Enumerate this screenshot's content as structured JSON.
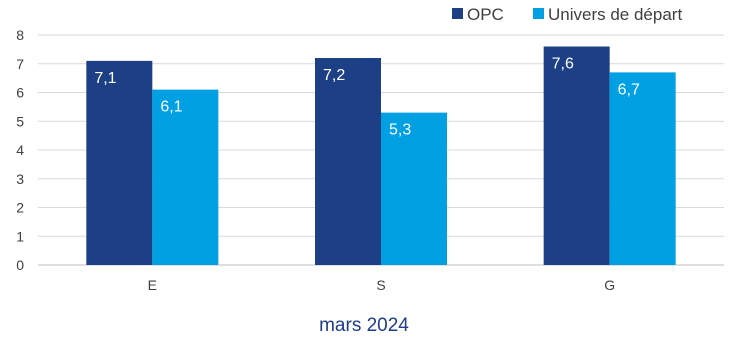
{
  "chart_data": {
    "type": "bar",
    "categories": [
      "E",
      "S",
      "G"
    ],
    "series": [
      {
        "name": "OPC",
        "values": [
          7.1,
          7.2,
          7.6
        ],
        "color": "#1c3f86"
      },
      {
        "name": "Univers de départ",
        "values": [
          6.1,
          5.3,
          6.7
        ],
        "color": "#00a0e3"
      }
    ],
    "data_labels": [
      [
        "7,1",
        "7,2",
        "7,6"
      ],
      [
        "6,1",
        "5,3",
        "6,7"
      ]
    ],
    "y_ticks": [
      "0",
      "1",
      "2",
      "3",
      "4",
      "5",
      "6",
      "7",
      "8"
    ],
    "ylim": [
      0,
      8
    ],
    "title": "",
    "xlabel": "mars 2024",
    "ylabel": "",
    "grid": true,
    "legend_position": "top-right"
  }
}
